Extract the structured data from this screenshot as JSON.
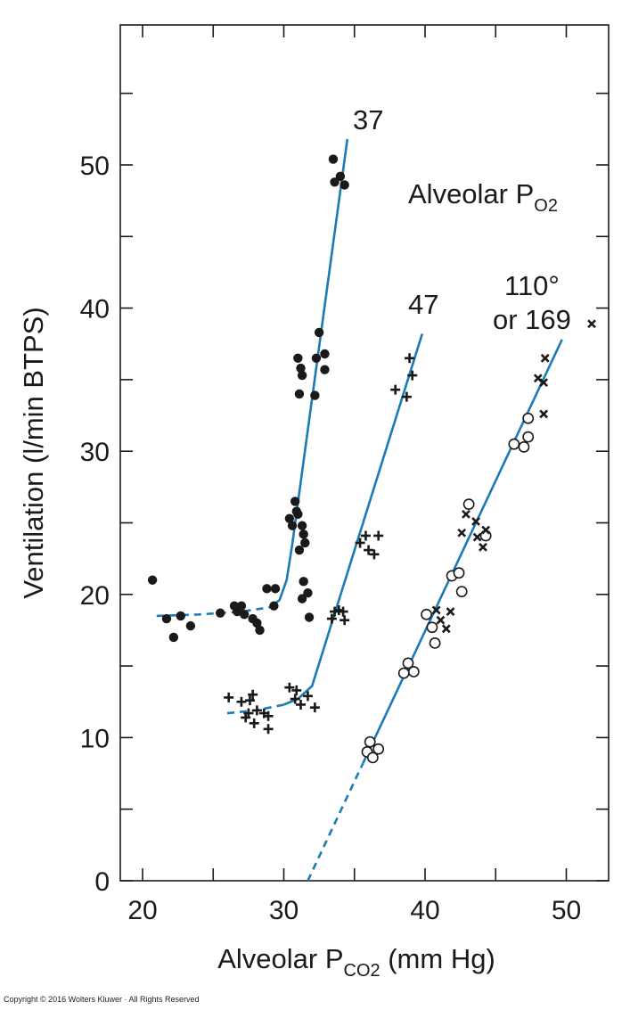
{
  "chart_data": {
    "type": "scatter",
    "x_axis": {
      "title": "Alveolar P",
      "title_sub": "CO2",
      "title_suffix": " (mm Hg)",
      "ticks": [
        20,
        30,
        40,
        50
      ],
      "range": [
        18,
        53
      ]
    },
    "y_axis": {
      "title": "Ventilation (l/min BTPS)",
      "ticks": [
        0,
        10,
        20,
        30,
        40,
        50
      ],
      "range": [
        0,
        60
      ]
    },
    "legend_title": {
      "text": "Alveolar P",
      "sub": "O2"
    },
    "curve_labels": {
      "c37": "37",
      "c47": "47",
      "c110_line1": "110°",
      "c110_line2": "or 169"
    },
    "colors": {
      "line": "#1a7bb8",
      "marker": "#1a1a1a"
    },
    "series": [
      {
        "name": "37",
        "marker": "filled-circle",
        "points": [
          [
            20.7,
            21.0
          ],
          [
            21.7,
            18.3
          ],
          [
            22.2,
            17.0
          ],
          [
            22.7,
            18.5
          ],
          [
            23.4,
            17.8
          ],
          [
            25.5,
            18.7
          ],
          [
            26.5,
            19.2
          ],
          [
            26.7,
            18.8
          ],
          [
            27.0,
            19.2
          ],
          [
            27.2,
            18.6
          ],
          [
            27.8,
            18.3
          ],
          [
            28.1,
            18.0
          ],
          [
            28.3,
            17.5
          ],
          [
            28.8,
            20.4
          ],
          [
            29.4,
            20.4
          ],
          [
            29.3,
            19.2
          ],
          [
            30.4,
            25.3
          ],
          [
            30.6,
            24.8
          ],
          [
            30.8,
            26.5
          ],
          [
            30.9,
            25.8
          ],
          [
            31.0,
            25.6
          ],
          [
            31.1,
            23.1
          ],
          [
            31.3,
            24.8
          ],
          [
            31.4,
            24.2
          ],
          [
            31.5,
            23.6
          ],
          [
            31.4,
            20.9
          ],
          [
            31.3,
            19.7
          ],
          [
            31.7,
            20.1
          ],
          [
            31.8,
            18.4
          ],
          [
            31.0,
            36.5
          ],
          [
            31.2,
            35.8
          ],
          [
            31.3,
            35.3
          ],
          [
            31.1,
            34.0
          ],
          [
            32.2,
            33.9
          ],
          [
            32.3,
            36.5
          ],
          [
            32.5,
            38.3
          ],
          [
            32.9,
            36.8
          ],
          [
            32.9,
            35.7
          ],
          [
            33.5,
            50.4
          ],
          [
            33.6,
            48.8
          ],
          [
            34.0,
            49.2
          ],
          [
            34.3,
            48.6
          ]
        ]
      },
      {
        "name": "47",
        "marker": "plus",
        "points": [
          [
            26.1,
            12.8
          ],
          [
            27.0,
            12.5
          ],
          [
            27.6,
            12.6
          ],
          [
            27.3,
            11.4
          ],
          [
            27.5,
            11.7
          ],
          [
            27.8,
            13.0
          ],
          [
            27.9,
            11.0
          ],
          [
            28.1,
            11.9
          ],
          [
            28.6,
            11.7
          ],
          [
            28.9,
            10.6
          ],
          [
            28.9,
            11.5
          ],
          [
            30.4,
            13.5
          ],
          [
            30.8,
            12.7
          ],
          [
            30.9,
            13.3
          ],
          [
            31.2,
            12.3
          ],
          [
            31.7,
            12.9
          ],
          [
            32.2,
            12.1
          ],
          [
            33.4,
            18.3
          ],
          [
            33.6,
            18.8
          ],
          [
            33.9,
            18.9
          ],
          [
            34.2,
            18.8
          ],
          [
            34.3,
            18.2
          ],
          [
            35.4,
            23.6
          ],
          [
            35.8,
            24.1
          ],
          [
            36.0,
            23.1
          ],
          [
            36.4,
            22.8
          ],
          [
            36.7,
            24.1
          ],
          [
            37.9,
            34.3
          ],
          [
            38.7,
            33.8
          ],
          [
            38.9,
            36.5
          ],
          [
            39.1,
            35.3
          ]
        ]
      },
      {
        "name": "110",
        "marker": "open-circle",
        "points": [
          [
            35.9,
            9.0
          ],
          [
            36.1,
            9.7
          ],
          [
            36.3,
            8.6
          ],
          [
            36.7,
            9.2
          ],
          [
            38.5,
            14.5
          ],
          [
            38.8,
            15.2
          ],
          [
            39.2,
            14.6
          ],
          [
            40.1,
            18.6
          ],
          [
            40.5,
            17.7
          ],
          [
            40.7,
            16.6
          ],
          [
            41.9,
            21.3
          ],
          [
            42.4,
            21.5
          ],
          [
            42.6,
            20.2
          ],
          [
            43.1,
            26.3
          ],
          [
            44.3,
            24.1
          ],
          [
            46.3,
            30.5
          ],
          [
            47.0,
            30.3
          ],
          [
            47.3,
            31.0
          ],
          [
            47.3,
            32.3
          ]
        ]
      },
      {
        "name": "169",
        "marker": "x",
        "points": [
          [
            40.8,
            18.9
          ],
          [
            41.1,
            18.2
          ],
          [
            41.5,
            17.6
          ],
          [
            41.8,
            18.8
          ],
          [
            42.6,
            24.3
          ],
          [
            42.9,
            25.6
          ],
          [
            43.6,
            25.1
          ],
          [
            43.7,
            24.0
          ],
          [
            44.1,
            23.3
          ],
          [
            44.3,
            24.5
          ],
          [
            48.0,
            35.1
          ],
          [
            48.4,
            34.8
          ],
          [
            48.5,
            36.5
          ],
          [
            48.4,
            32.6
          ],
          [
            51.8,
            38.9
          ]
        ]
      }
    ],
    "curves": [
      {
        "name": "37",
        "dashed": [
          [
            21.0,
            18.5
          ],
          [
            24.0,
            18.6
          ],
          [
            27.0,
            18.8
          ],
          [
            29.0,
            19.1
          ]
        ],
        "solid": [
          [
            29.0,
            19.1
          ],
          [
            29.7,
            19.6
          ],
          [
            30.2,
            21.0
          ],
          [
            30.6,
            23.5
          ],
          [
            34.5,
            51.8
          ]
        ]
      },
      {
        "name": "47",
        "dashed": [
          [
            26.0,
            11.7
          ],
          [
            28.0,
            11.9
          ],
          [
            30.0,
            12.3
          ]
        ],
        "solid": [
          [
            30.0,
            12.3
          ],
          [
            31.0,
            12.7
          ],
          [
            32.0,
            13.6
          ],
          [
            32.6,
            15.5
          ],
          [
            39.8,
            38.2
          ]
        ]
      },
      {
        "name": "110",
        "dashed": [
          [
            31.7,
            0
          ],
          [
            35.6,
            8.2
          ]
        ],
        "solid": [
          [
            35.6,
            8.2
          ],
          [
            49.7,
            37.8
          ]
        ]
      }
    ]
  },
  "copyright": "Copyright © 2016 Wolters Kluwer · All Rights Reserved"
}
